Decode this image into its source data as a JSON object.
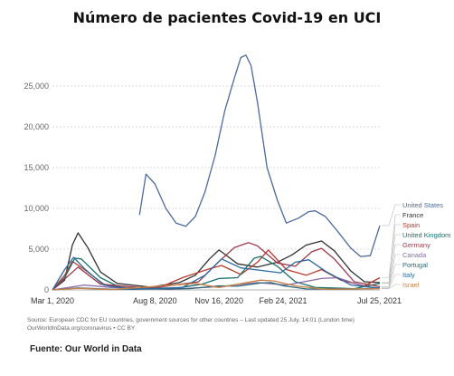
{
  "title": "Número de pacientes Covid-19 en UCI",
  "source_line1": "Source: European CDC for EU countries, government sources for other countries – Last updated 25 July, 14:01 (London time)",
  "source_line2": "OurWorldInData.org/coronavirus • CC BY",
  "footer": "Fuente: Our World in Data",
  "chart_data": {
    "type": "line",
    "x_tick_labels": [
      "Mar 1, 2020",
      "Aug 8, 2020",
      "Nov 16, 2020",
      "Feb 24, 2021",
      "Jul 25, 2021"
    ],
    "xlim": [
      "2020-03-01",
      "2021-07-25"
    ],
    "ylim": [
      0,
      30000
    ],
    "y_ticks": [
      0,
      5000,
      10000,
      15000,
      20000,
      25000
    ],
    "y_tick_labels": [
      "0",
      "5,000",
      "10,000",
      "15,000",
      "20,000",
      "25,000"
    ],
    "grid": "horizontal dotted",
    "legend_placement": "right",
    "series": [
      {
        "name": "United States",
        "color": "#4c6a9c",
        "x": [
          "2020-07-15",
          "2020-07-25",
          "2020-08-08",
          "2020-08-25",
          "2020-09-10",
          "2020-09-25",
          "2020-10-10",
          "2020-10-25",
          "2020-11-10",
          "2020-11-25",
          "2020-12-10",
          "2020-12-20",
          "2020-12-28",
          "2021-01-05",
          "2021-01-15",
          "2021-01-30",
          "2021-02-15",
          "2021-03-01",
          "2021-03-20",
          "2021-04-05",
          "2021-04-15",
          "2021-05-01",
          "2021-05-20",
          "2021-06-10",
          "2021-06-25",
          "2021-07-10",
          "2021-07-25"
        ],
        "y": [
          9200,
          14200,
          13000,
          10000,
          8200,
          7800,
          9000,
          12000,
          16500,
          22000,
          26000,
          28500,
          28800,
          27500,
          23000,
          15000,
          11000,
          8200,
          8800,
          9600,
          9700,
          9000,
          7200,
          5100,
          4100,
          4200,
          7900
        ]
      },
      {
        "name": "France",
        "color": "#333333",
        "x": [
          "2020-03-01",
          "2020-03-20",
          "2020-04-01",
          "2020-04-10",
          "2020-04-25",
          "2020-05-15",
          "2020-06-10",
          "2020-08-01",
          "2020-09-15",
          "2020-10-10",
          "2020-11-01",
          "2020-11-16",
          "2020-12-15",
          "2021-01-15",
          "2021-02-15",
          "2021-03-10",
          "2021-04-01",
          "2021-04-25",
          "2021-05-15",
          "2021-06-10",
          "2021-07-01",
          "2021-07-25"
        ],
        "y": [
          0,
          1200,
          5500,
          7000,
          5200,
          2200,
          800,
          350,
          900,
          1800,
          3800,
          4900,
          3200,
          2800,
          3400,
          4300,
          5500,
          6000,
          4800,
          2300,
          1000,
          900
        ]
      },
      {
        "name": "Spain",
        "color": "#b83a2e",
        "x": [
          "2020-03-01",
          "2020-03-20",
          "2020-04-01",
          "2020-04-20",
          "2020-05-20",
          "2020-07-01",
          "2020-08-15",
          "2020-09-20",
          "2020-11-01",
          "2020-11-20",
          "2020-12-20",
          "2021-01-15",
          "2021-02-01",
          "2021-03-01",
          "2021-04-01",
          "2021-04-25",
          "2021-05-25",
          "2021-07-01",
          "2021-07-25"
        ],
        "y": [
          0,
          1800,
          3500,
          2500,
          700,
          150,
          300,
          1500,
          2600,
          3000,
          1900,
          3400,
          4900,
          2500,
          1800,
          2500,
          1200,
          500,
          1500
        ]
      },
      {
        "name": "United Kingdom",
        "color": "#18706a",
        "x": [
          "2020-03-01",
          "2020-03-20",
          "2020-04-05",
          "2020-04-15",
          "2020-05-15",
          "2020-06-15",
          "2020-09-01",
          "2020-10-20",
          "2020-11-16",
          "2020-12-15",
          "2021-01-10",
          "2021-01-20",
          "2021-02-15",
          "2021-03-15",
          "2021-04-15",
          "2021-06-15",
          "2021-07-25"
        ],
        "y": [
          0,
          1500,
          3900,
          3800,
          1500,
          300,
          100,
          700,
          1400,
          1500,
          3900,
          4100,
          2900,
          1000,
          300,
          150,
          800
        ]
      },
      {
        "name": "Germany",
        "color": "#9c3a4a",
        "x": [
          "2020-03-01",
          "2020-04-10",
          "2020-05-15",
          "2020-08-01",
          "2020-10-15",
          "2020-11-16",
          "2020-12-10",
          "2021-01-01",
          "2021-01-15",
          "2021-02-15",
          "2021-03-15",
          "2021-04-10",
          "2021-04-25",
          "2021-05-15",
          "2021-06-15",
          "2021-07-25"
        ],
        "y": [
          0,
          2800,
          700,
          200,
          1000,
          3500,
          5200,
          5800,
          5400,
          3300,
          2900,
          4700,
          5100,
          3800,
          1000,
          400
        ]
      },
      {
        "name": "Canada",
        "color": "#8a6aa8",
        "x": [
          "2020-03-01",
          "2020-04-20",
          "2020-06-01",
          "2020-09-01",
          "2020-11-16",
          "2021-01-15",
          "2021-03-01",
          "2021-04-25",
          "2021-05-20",
          "2021-07-01",
          "2021-07-25"
        ],
        "y": [
          0,
          600,
          300,
          80,
          400,
          900,
          600,
          1400,
          1500,
          400,
          250
        ]
      },
      {
        "name": "Portugal",
        "color": "#2a6878",
        "x": [
          "2020-03-01",
          "2020-04-10",
          "2020-06-01",
          "2020-10-01",
          "2020-11-16",
          "2020-12-15",
          "2021-01-20",
          "2021-02-05",
          "2021-02-25",
          "2021-04-01",
          "2021-06-15",
          "2021-07-25"
        ],
        "y": [
          0,
          250,
          80,
          150,
          500,
          450,
          850,
          900,
          500,
          120,
          100,
          200
        ]
      },
      {
        "name": "Italy",
        "color": "#2a6aa0",
        "x": [
          "2020-03-01",
          "2020-03-20",
          "2020-04-03",
          "2020-04-20",
          "2020-05-20",
          "2020-07-01",
          "2020-09-20",
          "2020-10-25",
          "2020-11-20",
          "2020-12-20",
          "2021-01-20",
          "2021-02-20",
          "2021-03-15",
          "2021-04-05",
          "2021-05-01",
          "2021-06-10",
          "2021-07-25"
        ],
        "y": [
          0,
          2500,
          4000,
          2600,
          600,
          80,
          300,
          1800,
          3800,
          2700,
          2400,
          2100,
          3400,
          3700,
          2300,
          600,
          200
        ]
      },
      {
        "name": "Israel",
        "color": "#c8824a",
        "x": [
          "2020-03-01",
          "2020-04-10",
          "2020-06-01",
          "2020-09-25",
          "2020-10-10",
          "2020-11-16",
          "2021-01-20",
          "2021-02-10",
          "2021-03-15",
          "2021-05-01",
          "2021-07-25"
        ],
        "y": [
          0,
          200,
          50,
          700,
          800,
          300,
          1200,
          1100,
          500,
          80,
          150
        ]
      }
    ]
  }
}
